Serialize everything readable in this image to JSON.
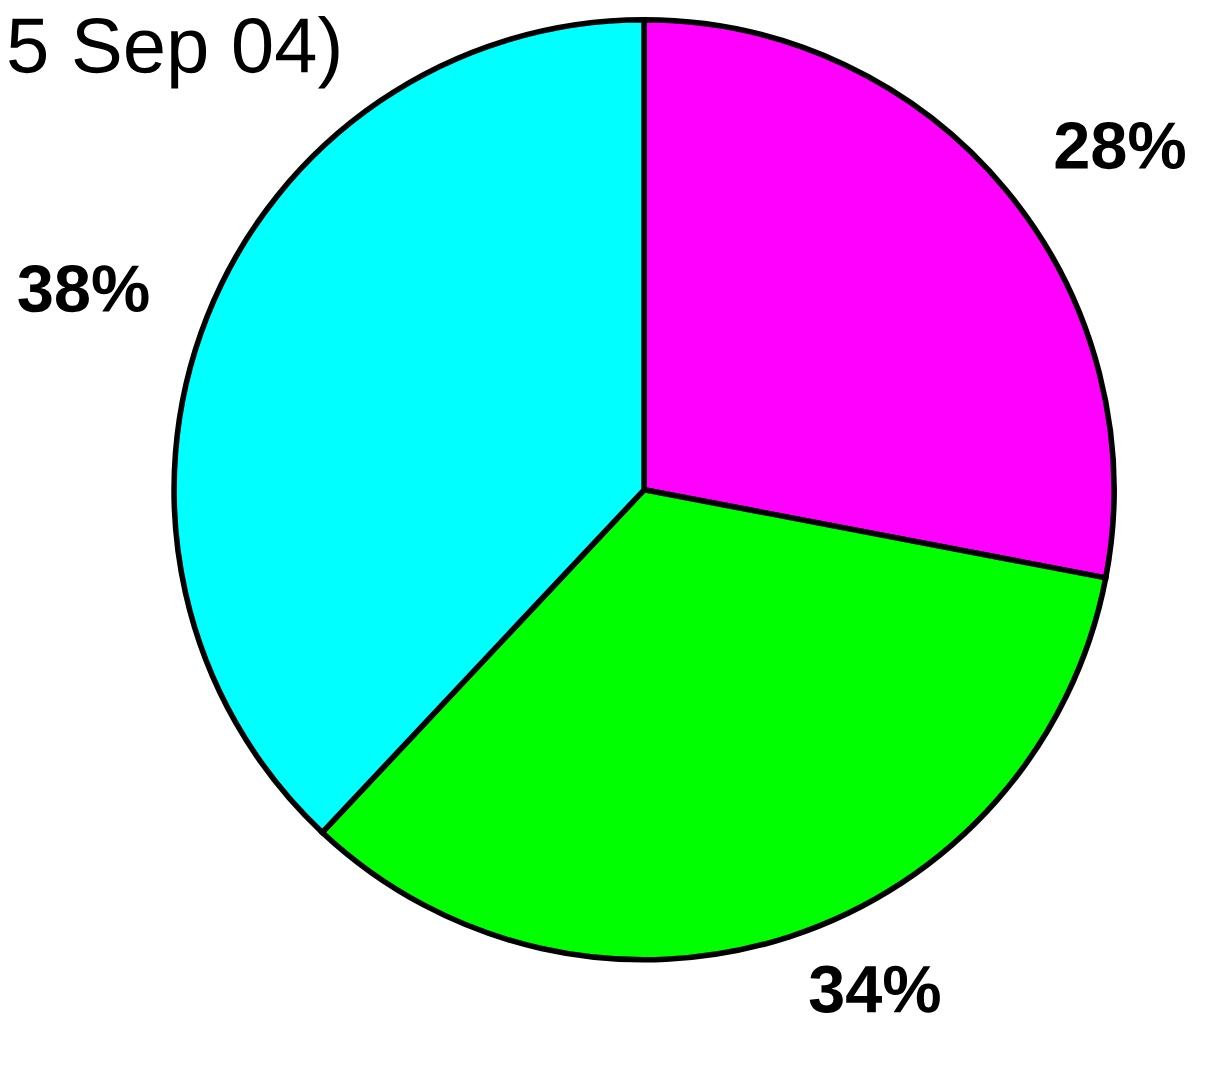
{
  "chart_data": {
    "type": "pie",
    "title": "5 Sep 04)",
    "categories": [
      null,
      null,
      null
    ],
    "values": [
      28,
      34,
      38
    ],
    "colors": [
      "#ff00ff",
      "#00ff00",
      "#00ffff"
    ],
    "value_labels": [
      "28%",
      "34%",
      "38%"
    ],
    "legend": false
  }
}
